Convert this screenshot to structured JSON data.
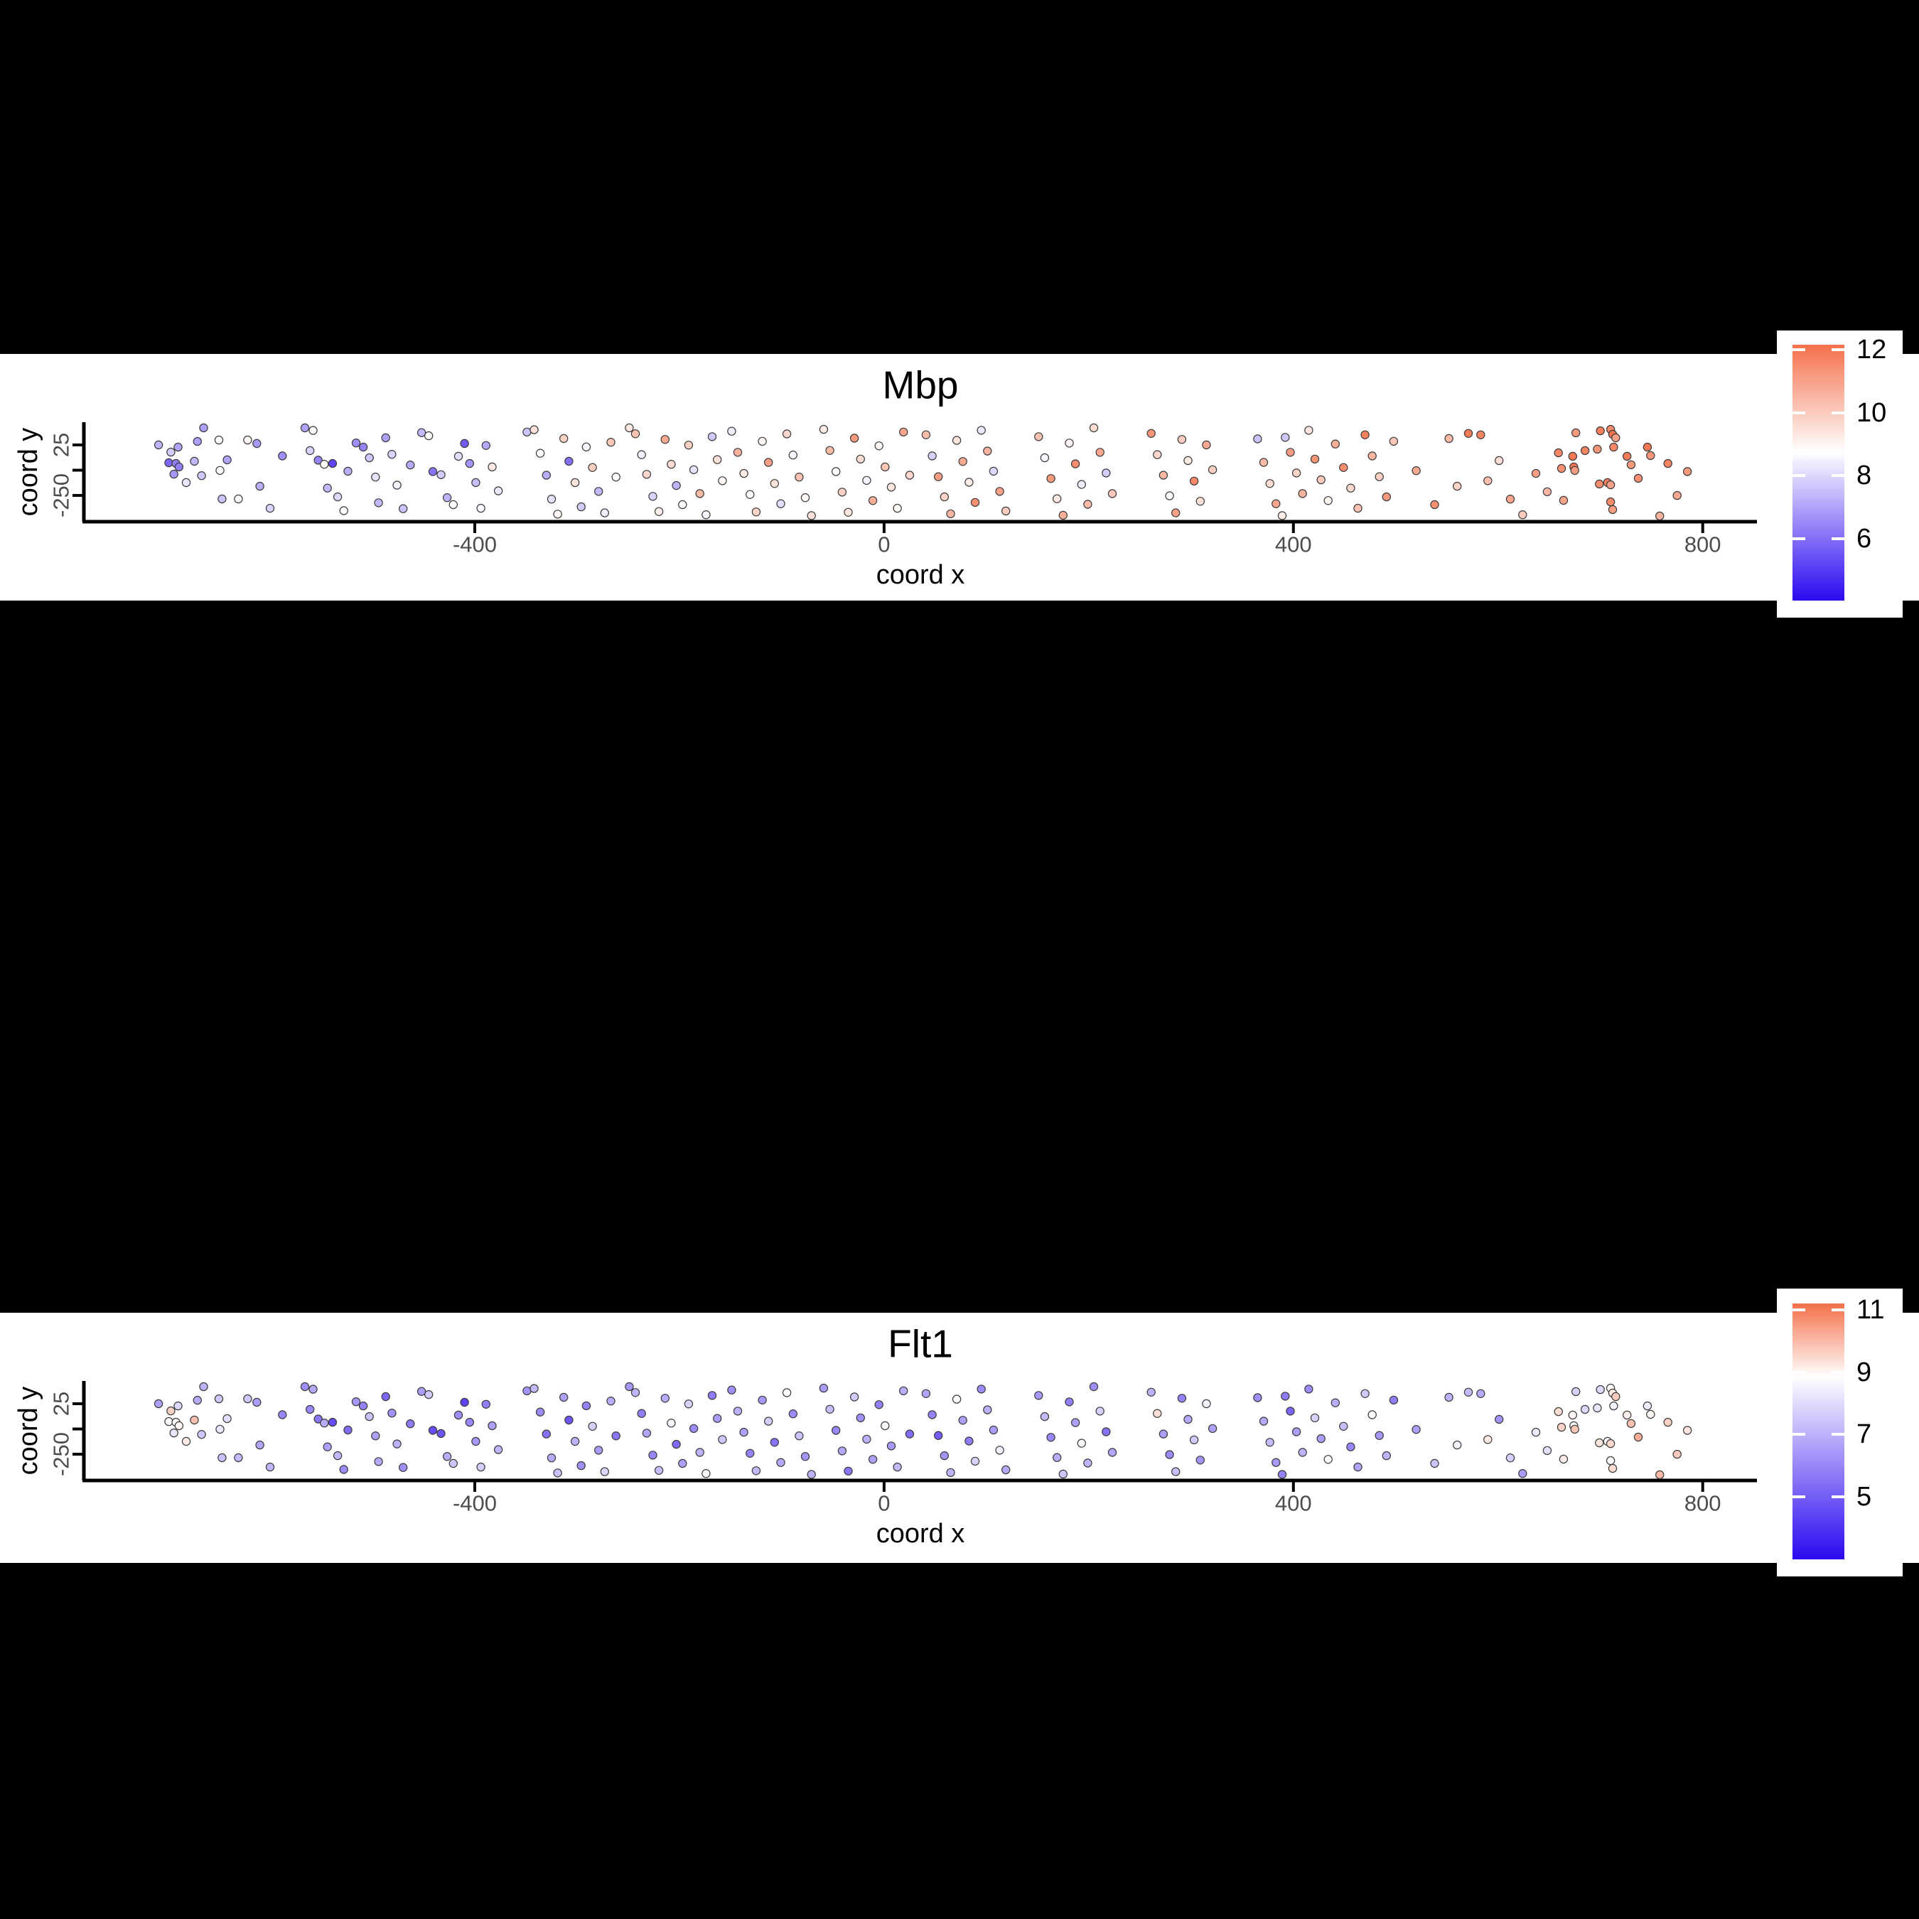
{
  "figure": {
    "background": "#000000",
    "band_background": "#FFFFFF",
    "tick_text_color": "#4D4D4D",
    "axis_color": "#000000",
    "point_stroke": "#3C3C3C"
  },
  "chart_data": {
    "type": "scatter",
    "description": "Two spatial feature plots of gene expression; identical spot coordinates, color-coded by expression.",
    "plots": [
      {
        "title": "Mbp",
        "xlabel": "coord x",
        "ylabel": "coord y",
        "x_range": [
          -782,
          853
        ],
        "y_range": [
          -393,
          149
        ],
        "x_ticks": [
          {
            "v": -400,
            "label": "-400"
          },
          {
            "v": 0,
            "label": "0"
          },
          {
            "v": 400,
            "label": "400"
          },
          {
            "v": 800,
            "label": "800"
          }
        ],
        "y_ticks": [
          {
            "v": 25,
            "label": "25"
          },
          {
            "v": -112.5,
            "label": ""
          },
          {
            "v": -250,
            "label": "-250"
          }
        ],
        "grid": false,
        "legend_position": "right",
        "colorbar": {
          "tick_labels": [
            "12",
            "10",
            "8",
            "6"
          ],
          "tick_values": [
            12,
            10,
            8,
            6
          ],
          "vmin": 4.05,
          "vmax": 12.15,
          "vwhite": 8.75,
          "low": "#2B09F0",
          "mid": "#FFFFFF",
          "high": "#F4714B"
        },
        "value_index": 2
      },
      {
        "title": "Flt1",
        "xlabel": "coord x",
        "ylabel": "coord y",
        "x_range": [
          -782,
          853
        ],
        "y_range": [
          -393,
          149
        ],
        "x_ticks": [
          {
            "v": -400,
            "label": "-400"
          },
          {
            "v": 0,
            "label": "0"
          },
          {
            "v": 400,
            "label": "400"
          },
          {
            "v": 800,
            "label": "800"
          }
        ],
        "y_ticks": [
          {
            "v": 25,
            "label": "25"
          },
          {
            "v": -112.5,
            "label": ""
          },
          {
            "v": -250,
            "label": "-250"
          }
        ],
        "grid": false,
        "legend_position": "right",
        "colorbar": {
          "tick_labels": [
            "11",
            "9",
            "7",
            "5"
          ],
          "tick_values": [
            11,
            9,
            7,
            5
          ],
          "vmin": 3.0,
          "vmax": 11.2,
          "vwhite": 8.85,
          "low": "#2B09F0",
          "mid": "#FFFFFF",
          "high": "#F4714B"
        },
        "value_index": 3
      }
    ],
    "points_format": [
      "coord_x",
      "coord_y",
      "Mbp",
      "Flt1"
    ],
    "points": [
      [
        -709,
        25,
        7.3,
        6.6
      ],
      [
        -697,
        -14,
        7.8,
        9.6
      ],
      [
        -690,
        13,
        7.0,
        7.9
      ],
      [
        -699,
        -72,
        5.8,
        8.9
      ],
      [
        -692,
        -76,
        6.3,
        8.8
      ],
      [
        -689,
        -95,
        6.3,
        9.0
      ],
      [
        -694,
        -134,
        6.8,
        8.2
      ],
      [
        -682,
        -180,
        8.3,
        9.2
      ],
      [
        -674,
        -64,
        7.4,
        9.9
      ],
      [
        -671,
        44,
        6.9,
        6.8
      ],
      [
        -665,
        118,
        6.9,
        7.0
      ],
      [
        -667,
        -142,
        7.7,
        7.5
      ],
      [
        -650,
        52,
        8.7,
        7.6
      ],
      [
        -649,
        -114,
        8.7,
        8.3
      ],
      [
        -647,
        -269,
        7.6,
        7.4
      ],
      [
        -631,
        -269,
        8.8,
        7.2
      ],
      [
        -642,
        -56,
        7.0,
        8.1
      ],
      [
        -622,
        52,
        9.0,
        7.6
      ],
      [
        -613,
        33,
        6.8,
        6.5
      ],
      [
        -610,
        -200,
        7.2,
        6.7
      ],
      [
        -600,
        -320,
        7.9,
        7.1
      ],
      [
        -588,
        -35,
        6.6,
        6.0
      ],
      [
        -566,
        118,
        7.0,
        6.2
      ],
      [
        -558,
        104,
        8.7,
        6.8
      ],
      [
        -561,
        -6,
        7.9,
        6.0
      ],
      [
        -553,
        -58,
        6.4,
        5.6
      ],
      [
        -547,
        -80,
        8.8,
        6.9
      ],
      [
        -539,
        -76,
        5.2,
        4.6
      ],
      [
        -544,
        -210,
        7.4,
        6.6
      ],
      [
        -534,
        -258,
        8.0,
        7.2
      ],
      [
        -528,
        -333,
        8.7,
        6.1
      ],
      [
        -524,
        -118,
        7.2,
        5.4
      ],
      [
        -516,
        36,
        6.6,
        6.4
      ],
      [
        -509,
        13,
        6.4,
        5.9
      ],
      [
        -503,
        -45,
        7.7,
        7.4
      ],
      [
        -497,
        -150,
        8.2,
        6.6
      ],
      [
        -494,
        -290,
        7.4,
        6.8
      ],
      [
        -487,
        64,
        6.9,
        5.2
      ],
      [
        -481,
        -26,
        7.9,
        6.3
      ],
      [
        -476,
        -194,
        8.5,
        7.0
      ],
      [
        -470,
        -322,
        7.6,
        6.2
      ],
      [
        -463,
        -84,
        7.1,
        5.7
      ],
      [
        -452,
        92,
        7.4,
        6.5
      ],
      [
        -445,
        75,
        8.7,
        7.6
      ],
      [
        -441,
        -120,
        6.1,
        4.6
      ],
      [
        -433,
        -137,
        7.8,
        4.8
      ],
      [
        -427,
        -262,
        7.3,
        6.9
      ],
      [
        -421,
        -300,
        8.8,
        7.5
      ],
      [
        -416,
        -37,
        8.1,
        6.2
      ],
      [
        -410,
        33,
        5.6,
        4.4
      ],
      [
        -405,
        -76,
        6.7,
        6.0
      ],
      [
        -399,
        -180,
        7.5,
        6.4
      ],
      [
        -394,
        -320,
        8.6,
        7.7
      ],
      [
        -389,
        22,
        7.1,
        5.8
      ],
      [
        -383,
        -95,
        9.3,
        6.6
      ],
      [
        -377,
        -225,
        8.3,
        7.1
      ],
      [
        -349,
        95,
        7.6,
        6.3
      ],
      [
        -342,
        108,
        9.5,
        7.2
      ],
      [
        -336,
        -20,
        8.8,
        6.1
      ],
      [
        -330,
        -140,
        7.2,
        5.5
      ],
      [
        -325,
        -270,
        8.2,
        6.8
      ],
      [
        -319,
        -352,
        8.9,
        7.4
      ],
      [
        -313,
        60,
        9.8,
        6.6
      ],
      [
        -308,
        -64,
        6.0,
        4.8
      ],
      [
        -302,
        -180,
        9.4,
        7.0
      ],
      [
        -296,
        -312,
        7.8,
        6.2
      ],
      [
        -291,
        14,
        8.6,
        5.9
      ],
      [
        -285,
        -98,
        9.9,
        7.7
      ],
      [
        -279,
        -228,
        7.4,
        6.5
      ],
      [
        -273,
        -345,
        8.4,
        7.9
      ],
      [
        -267,
        40,
        10.1,
        6.9
      ],
      [
        -262,
        -150,
        8.7,
        5.6
      ],
      [
        -249,
        118,
        9.3,
        6.4
      ],
      [
        -243,
        86,
        10.2,
        7.1
      ],
      [
        -237,
        -28,
        8.5,
        5.8
      ],
      [
        -232,
        -135,
        9.7,
        6.7
      ],
      [
        -226,
        -255,
        7.9,
        6.0
      ],
      [
        -220,
        -338,
        9.1,
        7.3
      ],
      [
        -214,
        55,
        10.8,
        6.9
      ],
      [
        -208,
        -80,
        9.6,
        8.6
      ],
      [
        -203,
        -196,
        7.3,
        5.3
      ],
      [
        -197,
        -300,
        8.8,
        6.6
      ],
      [
        -191,
        24,
        9.9,
        7.8
      ],
      [
        -186,
        -110,
        8.2,
        6.1
      ],
      [
        -180,
        -240,
        10.4,
        7.0
      ],
      [
        -174,
        -355,
        8.6,
        8.9
      ],
      [
        -168,
        70,
        7.7,
        5.7
      ],
      [
        -163,
        -55,
        9.5,
        6.5
      ],
      [
        -158,
        -170,
        8.9,
        7.5
      ],
      [
        -149,
        100,
        8.4,
        6.2
      ],
      [
        -143,
        -15,
        10.6,
        7.0
      ],
      [
        -137,
        -130,
        9.2,
        6.6
      ],
      [
        -131,
        -245,
        8.7,
        5.9
      ],
      [
        -125,
        -340,
        9.8,
        7.2
      ],
      [
        -119,
        45,
        8.9,
        6.4
      ],
      [
        -113,
        -70,
        11.0,
        7.7
      ],
      [
        -107,
        -185,
        9.4,
        5.5
      ],
      [
        -101,
        -295,
        8.1,
        6.8
      ],
      [
        -95,
        85,
        9.7,
        8.8
      ],
      [
        -89,
        -30,
        8.6,
        6.1
      ],
      [
        -83,
        -150,
        10.2,
        7.4
      ],
      [
        -77,
        -262,
        9.0,
        6.3
      ],
      [
        -71,
        -360,
        9.5,
        7.0
      ],
      [
        -59,
        110,
        9.2,
        6.5
      ],
      [
        -53,
        -5,
        10.4,
        7.3
      ],
      [
        -47,
        -120,
        8.8,
        6.0
      ],
      [
        -41,
        -232,
        9.9,
        6.8
      ],
      [
        -35,
        -342,
        9.3,
        5.6
      ],
      [
        -29,
        62,
        11.2,
        7.6
      ],
      [
        -23,
        -52,
        9.6,
        6.2
      ],
      [
        -17,
        -168,
        8.5,
        7.0
      ],
      [
        -11,
        -278,
        10.7,
        6.6
      ],
      [
        -5,
        20,
        9.0,
        5.8
      ],
      [
        1,
        -95,
        10.1,
        8.7
      ],
      [
        7,
        -205,
        9.4,
        6.4
      ],
      [
        13,
        -320,
        8.9,
        7.2
      ],
      [
        19,
        95,
        10.9,
        6.9
      ],
      [
        25,
        -140,
        9.7,
        5.4
      ],
      [
        41,
        80,
        10.3,
        6.7
      ],
      [
        47,
        -35,
        7.9,
        5.9
      ],
      [
        53,
        -148,
        11.1,
        5.0
      ],
      [
        59,
        -258,
        9.8,
        6.3
      ],
      [
        65,
        -350,
        10.5,
        7.1
      ],
      [
        71,
        50,
        9.4,
        8.9
      ],
      [
        77,
        -65,
        10.8,
        6.6
      ],
      [
        83,
        -178,
        9.2,
        5.7
      ],
      [
        89,
        -288,
        11.4,
        7.8
      ],
      [
        95,
        105,
        8.3,
        6.1
      ],
      [
        101,
        -8,
        10.6,
        7.0
      ],
      [
        107,
        -118,
        8.0,
        6.5
      ],
      [
        113,
        -228,
        11.0,
        8.5
      ],
      [
        119,
        -335,
        10.0,
        6.8
      ],
      [
        151,
        70,
        10.2,
        6.4
      ],
      [
        157,
        -45,
        8.6,
        7.2
      ],
      [
        163,
        -158,
        11.2,
        6.0
      ],
      [
        169,
        -268,
        9.3,
        6.9
      ],
      [
        175,
        -358,
        10.7,
        7.5
      ],
      [
        181,
        35,
        9.0,
        5.8
      ],
      [
        187,
        -78,
        11.5,
        6.6
      ],
      [
        193,
        -190,
        8.4,
        8.8
      ],
      [
        199,
        -298,
        10.4,
        7.1
      ],
      [
        205,
        118,
        9.6,
        6.2
      ],
      [
        211,
        -15,
        10.9,
        7.7
      ],
      [
        217,
        -128,
        7.8,
        5.5
      ],
      [
        223,
        -240,
        10.1,
        6.7
      ],
      [
        261,
        88,
        11.3,
        7.0
      ],
      [
        267,
        -28,
        9.7,
        9.4
      ],
      [
        273,
        -140,
        10.5,
        6.5
      ],
      [
        279,
        -252,
        8.8,
        6.1
      ],
      [
        285,
        -345,
        11.0,
        7.3
      ],
      [
        291,
        55,
        10.0,
        5.9
      ],
      [
        297,
        -60,
        9.2,
        6.8
      ],
      [
        303,
        -172,
        11.6,
        7.6
      ],
      [
        309,
        -282,
        9.5,
        6.3
      ],
      [
        315,
        25,
        10.8,
        8.6
      ],
      [
        321,
        -110,
        9.9,
        6.6
      ],
      [
        365,
        58,
        7.6,
        6.2
      ],
      [
        392,
        66,
        7.7,
        5.7
      ],
      [
        371,
        -70,
        10.4,
        6.8
      ],
      [
        377,
        -185,
        9.6,
        7.2
      ],
      [
        383,
        -295,
        10.9,
        6.4
      ],
      [
        389,
        -360,
        9.2,
        5.9
      ],
      [
        397,
        -15,
        11.1,
        5.2
      ],
      [
        403,
        -128,
        9.8,
        6.6
      ],
      [
        409,
        -240,
        10.6,
        7.0
      ],
      [
        415,
        105,
        9.4,
        6.1
      ],
      [
        421,
        -52,
        11.3,
        7.8
      ],
      [
        427,
        -165,
        10.0,
        6.5
      ],
      [
        434,
        -278,
        9.0,
        8.7
      ],
      [
        441,
        30,
        10.7,
        6.9
      ],
      [
        449,
        -98,
        11.5,
        7.3
      ],
      [
        456,
        -210,
        9.7,
        6.0
      ],
      [
        463,
        -320,
        10.2,
        6.7
      ],
      [
        470,
        80,
        11.8,
        7.6
      ],
      [
        477,
        -35,
        10.5,
        8.8
      ],
      [
        484,
        -148,
        9.9,
        6.4
      ],
      [
        491,
        -258,
        11.2,
        7.1
      ],
      [
        498,
        45,
        10.1,
        5.8
      ],
      [
        520,
        -115,
        10.8,
        6.6
      ],
      [
        538,
        -300,
        11.4,
        7.4
      ],
      [
        552,
        60,
        10.4,
        7.0
      ],
      [
        560,
        -200,
        9.8,
        8.6
      ],
      [
        571,
        88,
        11.9,
        7.2
      ],
      [
        583,
        80,
        11.7,
        6.8
      ],
      [
        590,
        -170,
        10.3,
        9.2
      ],
      [
        601,
        -60,
        9.5,
        6.3
      ],
      [
        612,
        -270,
        10.9,
        7.7
      ],
      [
        624,
        -355,
        10.0,
        6.5
      ],
      [
        637,
        -130,
        11.1,
        8.4
      ],
      [
        648,
        -230,
        10.5,
        8.1
      ],
      [
        659,
        -18,
        11.6,
        9.4
      ],
      [
        676,
        91,
        11.2,
        7.8
      ],
      [
        673,
        -37,
        11.9,
        9.0
      ],
      [
        662,
        -103,
        11.4,
        9.6
      ],
      [
        674,
        -95,
        12.0,
        8.8
      ],
      [
        675,
        -114,
        11.1,
        9.8
      ],
      [
        685,
        -6,
        11.7,
        7.9
      ],
      [
        697,
        2,
        11.3,
        8.2
      ],
      [
        700,
        102,
        11.8,
        8.0
      ],
      [
        710,
        110,
        11.5,
        8.9
      ],
      [
        712,
        83,
        12.1,
        9.2
      ],
      [
        715,
        64,
        11.0,
        9.7
      ],
      [
        713,
        13,
        11.6,
        8.6
      ],
      [
        726,
        -37,
        11.9,
        9.1
      ],
      [
        730,
        -83,
        11.2,
        9.9
      ],
      [
        699,
        -188,
        11.5,
        9.3
      ],
      [
        707,
        -180,
        11.8,
        8.7
      ],
      [
        710,
        -192,
        11.0,
        9.5
      ],
      [
        737,
        -157,
        11.4,
        10.2
      ],
      [
        746,
        13,
        12.0,
        8.4
      ],
      [
        749,
        -33,
        11.3,
        9.0
      ],
      [
        766,
        -76,
        11.7,
        9.6
      ],
      [
        664,
        -277,
        10.9,
        9.2
      ],
      [
        710,
        -285,
        11.5,
        8.8
      ],
      [
        712,
        -327,
        11.1,
        9.4
      ],
      [
        758,
        -362,
        10.6,
        10.0
      ],
      [
        785,
        -120,
        11.2,
        9.3
      ],
      [
        775,
        -250,
        10.8,
        9.7
      ]
    ]
  }
}
